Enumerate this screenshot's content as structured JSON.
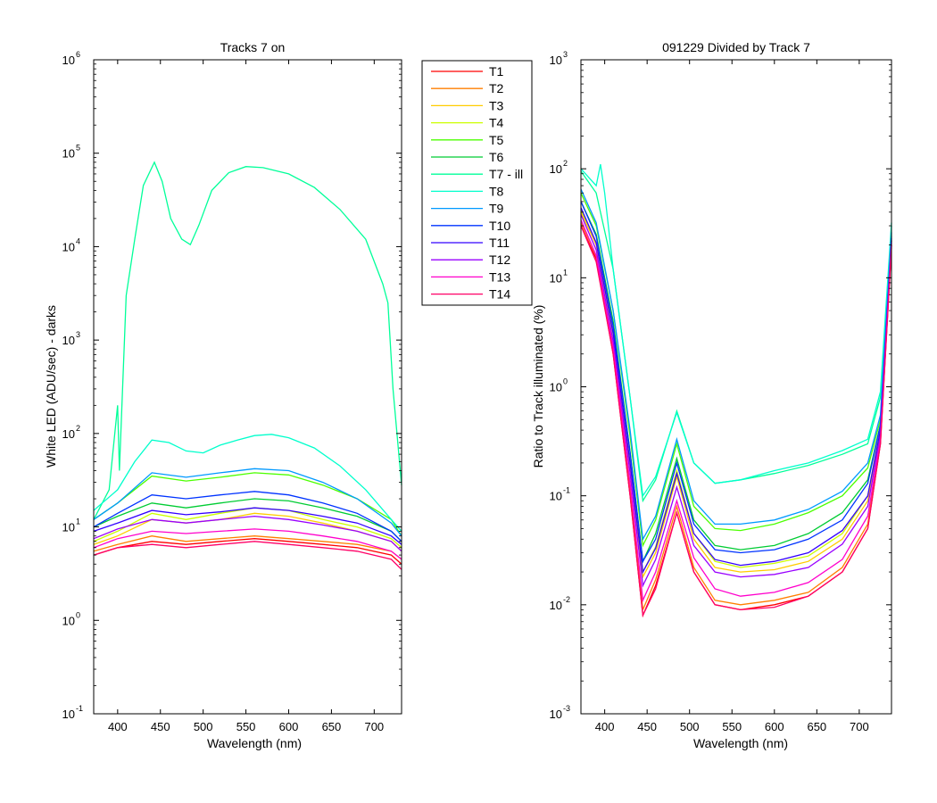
{
  "chart_data": [
    {
      "type": "line",
      "title": "Tracks 7 on",
      "xlabel": "Wavelength (nm)",
      "ylabel": "White LED  (ADU/sec) - darks",
      "xlim": [
        372,
        732
      ],
      "ylim": [
        0.1,
        1000000
      ],
      "yscale": "log",
      "xticks": [
        "400",
        "450",
        "500",
        "550",
        "600",
        "650",
        "700"
      ],
      "yticks": [
        {
          "base": "10",
          "exp": "-1"
        },
        {
          "base": "10",
          "exp": "0"
        },
        {
          "base": "10",
          "exp": "1"
        },
        {
          "base": "10",
          "exp": "2"
        },
        {
          "base": "10",
          "exp": "3"
        },
        {
          "base": "10",
          "exp": "4"
        },
        {
          "base": "10",
          "exp": "5"
        },
        {
          "base": "10",
          "exp": "6"
        }
      ],
      "legend_placement": "outside-right",
      "series": [
        {
          "name": "T1",
          "color": "#ff0000",
          "x": [
            372,
            400,
            440,
            480,
            520,
            560,
            600,
            640,
            680,
            720,
            732
          ],
          "y": [
            5,
            6,
            7,
            6.5,
            7,
            7.5,
            7,
            6.5,
            6,
            5,
            4
          ]
        },
        {
          "name": "T2",
          "color": "#ff7f00",
          "x": [
            372,
            400,
            440,
            480,
            520,
            560,
            600,
            640,
            680,
            720,
            732
          ],
          "y": [
            5.5,
            6.5,
            8,
            7,
            7.5,
            8,
            7.5,
            7,
            6.5,
            5.5,
            4.5
          ]
        },
        {
          "name": "T3",
          "color": "#ffcc00",
          "x": [
            372,
            400,
            440,
            480,
            520,
            560,
            600,
            640,
            680,
            720,
            732
          ],
          "y": [
            6.5,
            8,
            12,
            11,
            12,
            14,
            13,
            11,
            9,
            7,
            5.5
          ]
        },
        {
          "name": "T4",
          "color": "#ccff00",
          "x": [
            372,
            400,
            440,
            480,
            520,
            560,
            600,
            640,
            680,
            720,
            732
          ],
          "y": [
            7,
            9,
            14,
            12,
            14,
            16,
            15,
            12,
            10,
            7.5,
            6
          ]
        },
        {
          "name": "T5",
          "color": "#4cff00",
          "x": [
            372,
            400,
            440,
            480,
            520,
            560,
            600,
            640,
            680,
            720,
            732
          ],
          "y": [
            12,
            18,
            35,
            31,
            34,
            38,
            36,
            28,
            20,
            12,
            8
          ]
        },
        {
          "name": "T6",
          "color": "#00cc33",
          "x": [
            372,
            400,
            440,
            480,
            520,
            560,
            600,
            640,
            680,
            720,
            732
          ],
          "y": [
            10,
            13,
            18,
            16,
            18,
            20,
            19,
            16,
            13,
            9,
            7
          ]
        },
        {
          "name": "T7 - ill",
          "color": "#00ff99",
          "x": [
            372,
            390,
            400,
            402,
            410,
            420,
            430,
            443,
            452,
            462,
            475,
            485,
            495,
            510,
            530,
            550,
            570,
            600,
            630,
            660,
            690,
            710,
            716,
            722,
            732
          ],
          "y": [
            12,
            25,
            200,
            40,
            3000,
            12000,
            45000,
            80000,
            50000,
            20000,
            12000,
            10500,
            17000,
            40000,
            62000,
            72000,
            70000,
            60000,
            43000,
            25000,
            12000,
            4000,
            2500,
            300,
            28
          ]
        },
        {
          "name": "T8",
          "color": "#00ffcc",
          "x": [
            372,
            400,
            420,
            440,
            460,
            480,
            500,
            520,
            540,
            560,
            580,
            600,
            630,
            660,
            690,
            720,
            732
          ],
          "y": [
            15,
            25,
            50,
            85,
            80,
            65,
            62,
            75,
            85,
            95,
            98,
            90,
            70,
            45,
            25,
            12,
            9
          ]
        },
        {
          "name": "T9",
          "color": "#0099ff",
          "x": [
            372,
            400,
            440,
            480,
            520,
            560,
            600,
            640,
            680,
            720,
            732
          ],
          "y": [
            12,
            18,
            38,
            34,
            38,
            42,
            40,
            30,
            20,
            11,
            8
          ]
        },
        {
          "name": "T10",
          "color": "#0033ff",
          "x": [
            372,
            400,
            440,
            480,
            520,
            560,
            600,
            640,
            680,
            720,
            732
          ],
          "y": [
            10,
            14,
            22,
            20,
            22,
            24,
            22,
            18,
            14,
            9,
            7
          ]
        },
        {
          "name": "T11",
          "color": "#3300ff",
          "x": [
            372,
            400,
            440,
            480,
            520,
            560,
            600,
            640,
            680,
            720,
            732
          ],
          "y": [
            9,
            11,
            15,
            13.5,
            14.5,
            16,
            15,
            13,
            11,
            8,
            6.5
          ]
        },
        {
          "name": "T12",
          "color": "#9900ff",
          "x": [
            372,
            400,
            440,
            480,
            520,
            560,
            600,
            640,
            680,
            720,
            732
          ],
          "y": [
            7.5,
            9.5,
            12,
            11,
            12,
            13,
            12,
            10.5,
            9,
            7,
            5.5
          ]
        },
        {
          "name": "T13",
          "color": "#ff00cc",
          "x": [
            372,
            400,
            440,
            480,
            520,
            560,
            600,
            640,
            680,
            720,
            732
          ],
          "y": [
            6,
            7.5,
            9,
            8.5,
            9,
            9.5,
            9,
            8,
            7,
            5.5,
            4.5
          ]
        },
        {
          "name": "T14",
          "color": "#ff0066",
          "x": [
            372,
            400,
            440,
            480,
            520,
            560,
            600,
            640,
            680,
            720,
            732
          ],
          "y": [
            5,
            6,
            6.5,
            6,
            6.5,
            7,
            6.5,
            6,
            5.5,
            4.5,
            3.5
          ]
        }
      ]
    },
    {
      "type": "line",
      "title": "091229 Divided by Track 7",
      "xlabel": "Wavelength (nm)",
      "ylabel": "Ratio to Track illuminated (%)",
      "xlim": [
        372,
        738
      ],
      "ylim": [
        0.001,
        1000
      ],
      "yscale": "log",
      "xticks": [
        "400",
        "450",
        "500",
        "550",
        "600",
        "650",
        "700"
      ],
      "yticks": [
        {
          "base": "10",
          "exp": "-3"
        },
        {
          "base": "10",
          "exp": "-2"
        },
        {
          "base": "10",
          "exp": "-1"
        },
        {
          "base": "10",
          "exp": "0"
        },
        {
          "base": "10",
          "exp": "1"
        },
        {
          "base": "10",
          "exp": "2"
        },
        {
          "base": "10",
          "exp": "3"
        }
      ],
      "series_names": [
        "T1",
        "T2",
        "T3",
        "T4",
        "T5",
        "T6",
        "T7 - ill",
        "T8",
        "T9",
        "T10",
        "T11",
        "T12",
        "T13",
        "T14"
      ],
      "series": [
        {
          "name": "T1",
          "color": "#ff0000",
          "x": [
            372,
            390,
            410,
            430,
            445,
            460,
            485,
            505,
            530,
            560,
            600,
            640,
            680,
            710,
            725,
            738
          ],
          "y": [
            30,
            15,
            2,
            0.1,
            0.008,
            0.015,
            0.07,
            0.02,
            0.01,
            0.009,
            0.01,
            0.012,
            0.02,
            0.05,
            0.3,
            20
          ]
        },
        {
          "name": "T2",
          "color": "#ff7f00",
          "x": [
            372,
            390,
            410,
            430,
            445,
            460,
            485,
            505,
            530,
            560,
            600,
            640,
            680,
            710,
            725,
            738
          ],
          "y": [
            32,
            16,
            2.2,
            0.12,
            0.009,
            0.017,
            0.08,
            0.022,
            0.011,
            0.01,
            0.011,
            0.013,
            0.022,
            0.055,
            0.32,
            20
          ]
        },
        {
          "name": "T3",
          "color": "#ffcc00",
          "x": [
            372,
            390,
            410,
            430,
            445,
            460,
            485,
            505,
            530,
            560,
            600,
            640,
            680,
            710,
            725,
            738
          ],
          "y": [
            40,
            20,
            3,
            0.18,
            0.018,
            0.03,
            0.15,
            0.04,
            0.022,
            0.02,
            0.021,
            0.025,
            0.04,
            0.09,
            0.4,
            22
          ]
        },
        {
          "name": "T4",
          "color": "#ccff00",
          "x": [
            372,
            390,
            410,
            430,
            445,
            460,
            485,
            505,
            530,
            560,
            600,
            640,
            680,
            710,
            725,
            738
          ],
          "y": [
            42,
            21,
            3.2,
            0.2,
            0.02,
            0.034,
            0.17,
            0.045,
            0.025,
            0.022,
            0.024,
            0.028,
            0.045,
            0.1,
            0.42,
            22
          ]
        },
        {
          "name": "T5",
          "color": "#4cff00",
          "x": [
            372,
            390,
            410,
            430,
            445,
            460,
            485,
            505,
            530,
            560,
            600,
            640,
            680,
            710,
            725,
            738
          ],
          "y": [
            60,
            30,
            5,
            0.35,
            0.035,
            0.06,
            0.3,
            0.08,
            0.05,
            0.048,
            0.055,
            0.07,
            0.1,
            0.18,
            0.5,
            25
          ]
        },
        {
          "name": "T6",
          "color": "#00cc33",
          "x": [
            372,
            390,
            410,
            430,
            445,
            460,
            485,
            505,
            530,
            560,
            600,
            640,
            680,
            710,
            725,
            738
          ],
          "y": [
            50,
            25,
            4,
            0.25,
            0.025,
            0.045,
            0.22,
            0.06,
            0.035,
            0.032,
            0.035,
            0.045,
            0.07,
            0.14,
            0.45,
            24
          ]
        },
        {
          "name": "T7 - ill",
          "color": "#00ff99",
          "x": [
            372,
            390,
            410,
            430,
            445,
            460,
            485,
            505,
            530,
            560,
            600,
            640,
            680,
            710,
            725,
            738
          ],
          "y": [
            95,
            60,
            12,
            0.8,
            0.09,
            0.14,
            0.6,
            0.2,
            0.13,
            0.14,
            0.16,
            0.19,
            0.24,
            0.3,
            0.8,
            30
          ]
        },
        {
          "name": "T8",
          "color": "#00ffcc",
          "x": [
            372,
            390,
            395,
            400,
            410,
            430,
            445,
            460,
            485,
            505,
            530,
            560,
            600,
            640,
            680,
            710,
            725,
            738
          ],
          "y": [
            100,
            70,
            110,
            60,
            12,
            0.8,
            0.1,
            0.15,
            0.58,
            0.2,
            0.13,
            0.14,
            0.17,
            0.2,
            0.26,
            0.33,
            0.9,
            32
          ]
        },
        {
          "name": "T9",
          "color": "#0099ff",
          "x": [
            372,
            390,
            410,
            430,
            445,
            460,
            485,
            505,
            530,
            560,
            600,
            640,
            680,
            710,
            725,
            738
          ],
          "y": [
            65,
            32,
            5,
            0.4,
            0.04,
            0.065,
            0.33,
            0.09,
            0.055,
            0.055,
            0.06,
            0.075,
            0.11,
            0.2,
            0.55,
            26
          ]
        },
        {
          "name": "T10",
          "color": "#0033ff",
          "x": [
            372,
            390,
            410,
            430,
            445,
            460,
            485,
            505,
            530,
            560,
            600,
            640,
            680,
            710,
            725,
            738
          ],
          "y": [
            50,
            24,
            3.6,
            0.25,
            0.025,
            0.04,
            0.2,
            0.055,
            0.032,
            0.03,
            0.032,
            0.04,
            0.06,
            0.13,
            0.45,
            23
          ]
        },
        {
          "name": "T11",
          "color": "#3300ff",
          "x": [
            372,
            390,
            410,
            430,
            445,
            460,
            485,
            505,
            530,
            560,
            600,
            640,
            680,
            710,
            725,
            738
          ],
          "y": [
            44,
            21,
            3.1,
            0.2,
            0.02,
            0.033,
            0.16,
            0.045,
            0.026,
            0.023,
            0.025,
            0.03,
            0.048,
            0.1,
            0.4,
            22
          ]
        },
        {
          "name": "T12",
          "color": "#9900ff",
          "x": [
            372,
            390,
            410,
            430,
            445,
            460,
            485,
            505,
            530,
            560,
            600,
            640,
            680,
            710,
            725,
            738
          ],
          "y": [
            38,
            18,
            2.6,
            0.16,
            0.015,
            0.026,
            0.12,
            0.035,
            0.02,
            0.018,
            0.019,
            0.022,
            0.036,
            0.08,
            0.36,
            21
          ]
        },
        {
          "name": "T13",
          "color": "#ff00cc",
          "x": [
            372,
            390,
            410,
            430,
            445,
            460,
            485,
            505,
            530,
            560,
            600,
            640,
            680,
            710,
            725,
            738
          ],
          "y": [
            34,
            16,
            2.3,
            0.13,
            0.011,
            0.02,
            0.09,
            0.027,
            0.014,
            0.012,
            0.013,
            0.016,
            0.026,
            0.065,
            0.33,
            20
          ]
        },
        {
          "name": "T14",
          "color": "#ff0066",
          "x": [
            372,
            390,
            410,
            430,
            445,
            460,
            485,
            505,
            530,
            560,
            600,
            640,
            680,
            710,
            725,
            738
          ],
          "y": [
            30,
            14,
            2,
            0.1,
            0.008,
            0.014,
            0.07,
            0.02,
            0.01,
            0.009,
            0.0095,
            0.012,
            0.02,
            0.05,
            0.3,
            19
          ]
        }
      ]
    }
  ]
}
